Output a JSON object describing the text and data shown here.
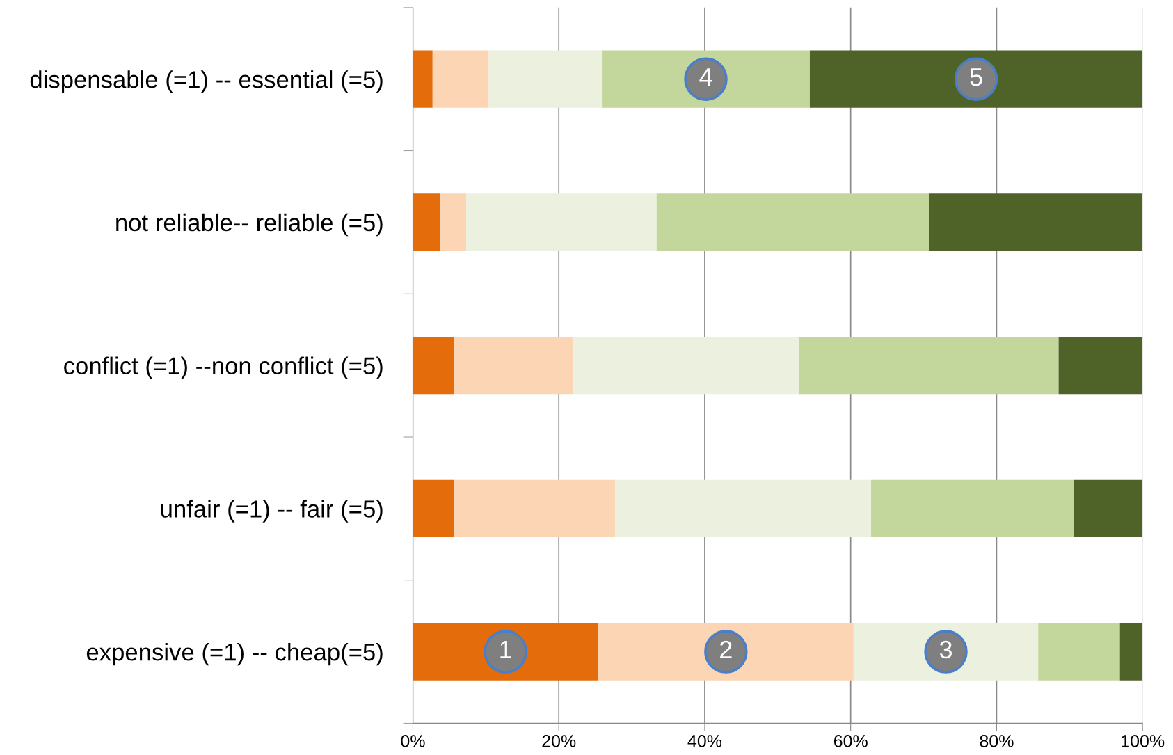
{
  "chart_data": {
    "type": "bar",
    "orientation": "horizontal",
    "stacked": true,
    "categories": [
      "dispensable (=1) -- essential (=5)",
      "not reliable-- reliable (=5)",
      "conflict (=1) --non conflict (=5)",
      "unfair (=1) -- fair (=5)",
      "expensive (=1) -- cheap(=5)"
    ],
    "series": [
      {
        "color": "#e46c0a",
        "values": [
          2.7,
          3.7,
          5.7,
          5.7,
          25.4
        ]
      },
      {
        "color": "#fcd5b5",
        "values": [
          7.7,
          3.6,
          16.3,
          22.0,
          35.0
        ]
      },
      {
        "color": "#ebf1de",
        "values": [
          15.5,
          26.1,
          30.9,
          35.1,
          25.3
        ]
      },
      {
        "color": "#c3d69b",
        "values": [
          28.5,
          37.4,
          35.6,
          27.8,
          11.2
        ]
      },
      {
        "color": "#4f6228",
        "values": [
          45.6,
          29.2,
          11.5,
          9.4,
          3.1
        ]
      }
    ],
    "xlim": [
      0,
      100
    ],
    "xticks": [
      {
        "value": 0,
        "label": "0%"
      },
      {
        "value": 20,
        "label": "20%"
      },
      {
        "value": 40,
        "label": "40%"
      },
      {
        "value": 60,
        "label": "60%"
      },
      {
        "value": 80,
        "label": "80%"
      },
      {
        "value": 100,
        "label": "100%"
      }
    ],
    "grid": "x",
    "annotations": [
      "1",
      "2",
      "3",
      "4",
      "5"
    ]
  }
}
